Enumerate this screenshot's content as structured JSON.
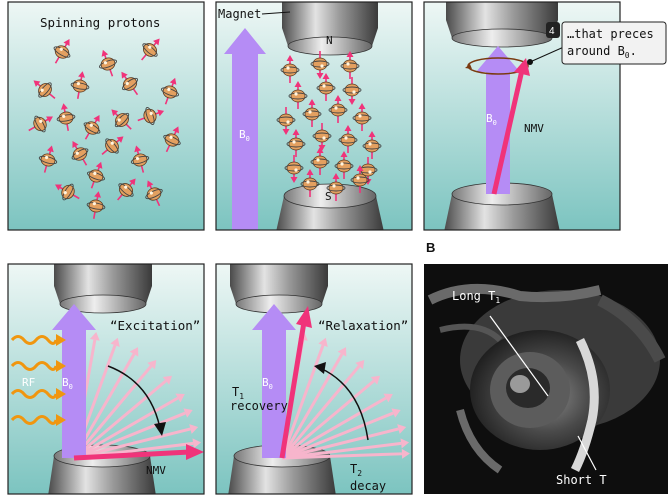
{
  "panels": {
    "p1": {
      "title": "Spinning protons"
    },
    "p2": {
      "magnet_label": "Magnet",
      "north": "N",
      "south": "S",
      "field": "B",
      "field_sub": "0"
    },
    "p3": {
      "step_badge": "4",
      "callout_line1": "…that preces",
      "callout_line2_main": "around B",
      "callout_line2_sub": "0",
      "callout_line2_end": ".",
      "field": "B",
      "field_sub": "0",
      "vector_label": "NMV"
    },
    "p4": {
      "title": "“Excitation”",
      "rf_label": "RF",
      "field": "B",
      "field_sub": "0",
      "vector_label": "NMV"
    },
    "p5": {
      "title": "“Relaxation”",
      "field": "B",
      "field_sub": "0",
      "t1_main": "T",
      "t1_sub": "1",
      "t1_word": "recovery",
      "t2_main": "T",
      "t2_sub": "2",
      "t2_word": "decay"
    },
    "p6": {
      "section_label": "B",
      "long_main": "Long T",
      "long_sub": "1",
      "short_main": "Short T"
    }
  },
  "colors": {
    "panel_top": "#e9f4f1",
    "panel_bottom": "#7fc6c2",
    "field_arrow": "#b58cf5",
    "nmv_arrow": "#f0337a",
    "fan_arrow": "#f7b5cc",
    "rf_wave": "#f0960f",
    "magnet_dark": "#3c3c3c",
    "magnet_light": "#d8d8d8"
  }
}
